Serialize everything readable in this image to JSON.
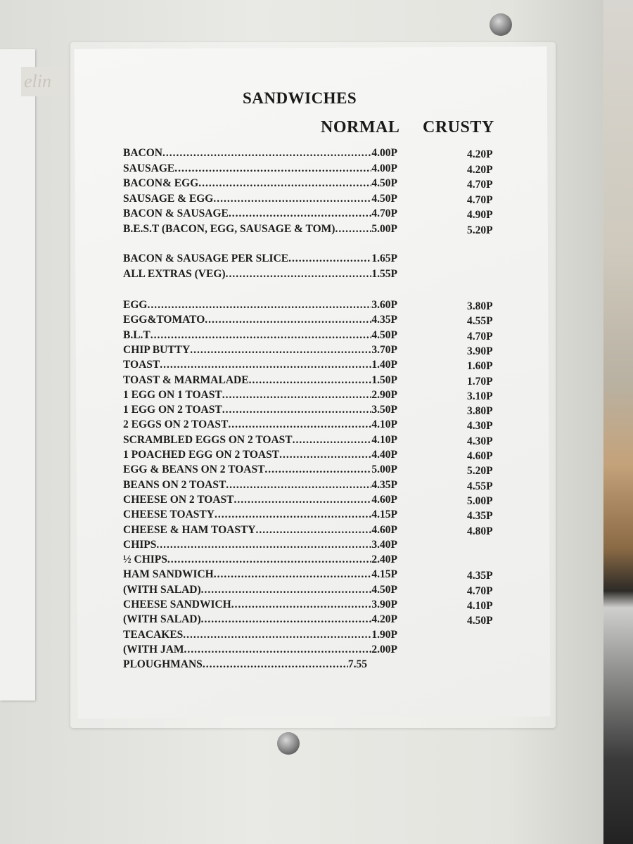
{
  "brand_logo_text": "elin",
  "menu": {
    "title": "SANDWICHES",
    "columns": [
      "NORMAL",
      "CRUSTY"
    ],
    "groups": [
      [
        {
          "name": "BACON",
          "normal": "4.00P",
          "crusty": "4.20P"
        },
        {
          "name": "SAUSAGE",
          "normal": "4.00P",
          "crusty": "4.20P"
        },
        {
          "name": "BACON& EGG",
          "normal": "4.50P",
          "crusty": "4.70P"
        },
        {
          "name": "SAUSAGE & EGG",
          "normal": "4.50P",
          "crusty": "4.70P"
        },
        {
          "name": "BACON & SAUSAGE",
          "normal": "4.70P",
          "crusty": "4.90P"
        },
        {
          "name": "B.E.S.T (BACON, EGG, SAUSAGE & TOM)",
          "normal": "5.00P",
          "crusty": "5.20P"
        }
      ],
      [
        {
          "name": "BACON & SAUSAGE PER SLICE",
          "normal": "1.65P",
          "crusty": ""
        },
        {
          "name": "ALL EXTRAS (VEG)",
          "normal": "1.55P",
          "crusty": ""
        }
      ],
      [
        {
          "name": "EGG",
          "normal": "3.60P",
          "crusty": "3.80P"
        },
        {
          "name": "EGG&TOMATO",
          "normal": "4.35P",
          "crusty": "4.55P"
        },
        {
          "name": "B.L.T",
          "normal": "4.50P",
          "crusty": "4.70P"
        },
        {
          "name": "CHIP BUTTY",
          "normal": "3.70P",
          "crusty": "3.90P"
        },
        {
          "name": "TOAST",
          "normal": "1.40P",
          "crusty": "1.60P"
        },
        {
          "name": "TOAST & MARMALADE",
          "normal": "1.50P",
          "crusty": "1.70P"
        },
        {
          "name": "1 EGG ON 1 TOAST",
          "normal": "2.90P",
          "crusty": "3.10P"
        },
        {
          "name": "1 EGG ON 2 TOAST",
          "normal": "3.50P",
          "crusty": "3.80P"
        },
        {
          "name": "2 EGGS ON 2 TOAST",
          "normal": "4.10P",
          "crusty": "4.30P"
        },
        {
          "name": "SCRAMBLED EGGS ON 2 TOAST",
          "normal": "4.10P",
          "crusty": "4.30P"
        },
        {
          "name": "1 POACHED EGG ON 2 TOAST",
          "normal": "4.40P",
          "crusty": "4.60P"
        },
        {
          "name": "EGG & BEANS ON 2 TOAST",
          "normal": "5.00P",
          "crusty": "5.20P"
        },
        {
          "name": "BEANS ON 2 TOAST",
          "normal": "4.35P",
          "crusty": "4.55P"
        },
        {
          "name": "CHEESE ON 2 TOAST",
          "normal": "4.60P",
          "crusty": "5.00P"
        },
        {
          "name": "CHEESE TOASTY",
          "normal": "4.15P",
          "crusty": "4.35P"
        },
        {
          "name": "CHEESE & HAM TOASTY",
          "normal": "4.60P",
          "crusty": "4.80P"
        },
        {
          "name": "CHIPS",
          "normal": "3.40P",
          "crusty": ""
        },
        {
          "name": "½ CHIPS",
          "normal": "2.40P",
          "crusty": ""
        },
        {
          "name": "HAM SANDWICH",
          "normal": "4.15P",
          "crusty": "4.35P"
        },
        {
          "name": "(WITH SALAD)",
          "normal": "4.50P",
          "crusty": "4.70P"
        },
        {
          "name": "CHEESE SANDWICH",
          "normal": "3.90P",
          "crusty": "4.10P"
        },
        {
          "name": "(WITH SALAD)",
          "normal": "4.20P",
          "crusty": "4.50P"
        },
        {
          "name": "TEACAKES",
          "normal": "1.90P",
          "crusty": ""
        },
        {
          "name": "(WITH JAM",
          "normal": "2.00P",
          "crusty": ""
        },
        {
          "name": "PLOUGHMANS",
          "normal": "7.55",
          "crusty": ""
        }
      ]
    ]
  }
}
